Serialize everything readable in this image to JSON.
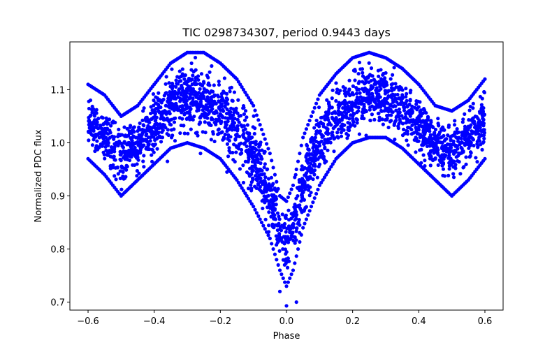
{
  "chart_data": {
    "type": "scatter",
    "title": "TIC 0298734307, period 0.9443 days",
    "xlabel": "Phase",
    "ylabel": "Normalized PDC flux",
    "xlim": [
      -0.655,
      0.655
    ],
    "ylim": [
      0.685,
      1.19
    ],
    "x_ticks": [
      -0.6,
      -0.4,
      -0.2,
      0.0,
      0.2,
      0.4,
      0.6
    ],
    "x_tick_labels": [
      "−0.6",
      "−0.4",
      "−0.2",
      "0.0",
      "0.2",
      "0.4",
      "0.6"
    ],
    "y_ticks": [
      0.7,
      0.8,
      0.9,
      1.0,
      1.1
    ],
    "y_tick_labels": [
      "0.7",
      "0.8",
      "0.9",
      "1.0",
      "1.1"
    ],
    "grid": false,
    "legend": "none",
    "marker_color": "#0000ff",
    "series": [
      {
        "name": "",
        "color": "#0000ff",
        "envelope": {
          "phase": [
            -0.6,
            -0.55,
            -0.5,
            -0.45,
            -0.4,
            -0.35,
            -0.3,
            -0.25,
            -0.2,
            -0.15,
            -0.1,
            -0.05,
            -0.02,
            0.0,
            0.02,
            0.05,
            0.1,
            0.15,
            0.2,
            0.25,
            0.3,
            0.35,
            0.4,
            0.45,
            0.5,
            0.55,
            0.6
          ],
          "lower": [
            0.97,
            0.94,
            0.9,
            0.93,
            0.96,
            0.99,
            1.0,
            0.99,
            0.97,
            0.93,
            0.88,
            0.82,
            0.76,
            0.73,
            0.76,
            0.84,
            0.92,
            0.97,
            1.0,
            1.01,
            1.01,
            0.99,
            0.96,
            0.93,
            0.9,
            0.93,
            0.97
          ],
          "upper": [
            1.11,
            1.09,
            1.05,
            1.07,
            1.11,
            1.15,
            1.17,
            1.17,
            1.15,
            1.12,
            1.07,
            0.98,
            0.9,
            0.89,
            0.92,
            1.01,
            1.09,
            1.13,
            1.16,
            1.17,
            1.16,
            1.14,
            1.11,
            1.07,
            1.06,
            1.08,
            1.12
          ]
        },
        "outliers": [
          {
            "x": 0.03,
            "y": 0.7
          },
          {
            "x": -0.02,
            "y": 0.72
          },
          {
            "x": 0.0,
            "y": 0.693
          },
          {
            "x": -0.18,
            "y": 0.945
          },
          {
            "x": -0.13,
            "y": 0.925
          },
          {
            "x": -0.36,
            "y": 0.965
          },
          {
            "x": 0.12,
            "y": 0.965
          },
          {
            "x": -0.26,
            "y": 0.98
          }
        ]
      }
    ]
  }
}
